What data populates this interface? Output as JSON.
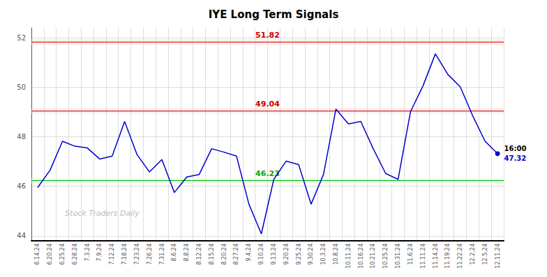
{
  "chart_data": {
    "type": "line",
    "title": "IYE Long Term Signals",
    "categories": [
      "6.14.24",
      "6.20.24",
      "6.25.24",
      "6.28.24",
      "7.3.24",
      "7.9.24",
      "7.12.24",
      "7.18.24",
      "7.23.24",
      "7.26.24",
      "7.31.24",
      "8.6.24",
      "8.8.24",
      "8.12.24",
      "8.15.24",
      "8.20.24",
      "8.27.24",
      "9.4.24",
      "9.10.24",
      "9.13.24",
      "9.20.24",
      "9.25.24",
      "9.30.24",
      "10.3.24",
      "10.8.24",
      "10.11.24",
      "10.16.24",
      "10.21.24",
      "10.25.24",
      "10.31.24",
      "11.6.24",
      "11.11.24",
      "11.14.24",
      "11.19.24",
      "11.22.24",
      "12.2.24",
      "12.5.24",
      "12.11.24"
    ],
    "values": [
      45.95,
      46.65,
      47.82,
      47.62,
      47.55,
      47.1,
      47.22,
      48.62,
      47.28,
      46.58,
      47.08,
      45.75,
      46.38,
      46.48,
      47.52,
      47.38,
      47.22,
      45.28,
      44.08,
      46.28,
      47.02,
      46.88,
      45.28,
      46.48,
      49.12,
      48.52,
      48.62,
      47.52,
      46.52,
      46.28,
      49.02,
      50.05,
      51.35,
      50.52,
      50.02,
      48.85,
      47.82,
      47.32
    ],
    "color": "#0000cc",
    "levels": [
      {
        "value": 51.82,
        "label": "51.82",
        "band": 0.12,
        "color": "#cc0000",
        "fill_color": "#ffcccc"
      },
      {
        "value": 49.04,
        "label": "49.04",
        "band": 0.12,
        "color": "#cc0000",
        "fill_color": "#ffcccc"
      },
      {
        "value": 46.23,
        "label": "46.23",
        "band": 0.12,
        "color": "#00aa00",
        "fill_color": "#ccffcc"
      }
    ],
    "last_label": {
      "time": "16:00",
      "price": "47.32"
    },
    "watermark": "Stock Traders Daily",
    "ylim": [
      43.8,
      52.4
    ],
    "yticks": [
      44,
      46,
      48,
      50,
      52
    ],
    "grid": true
  }
}
